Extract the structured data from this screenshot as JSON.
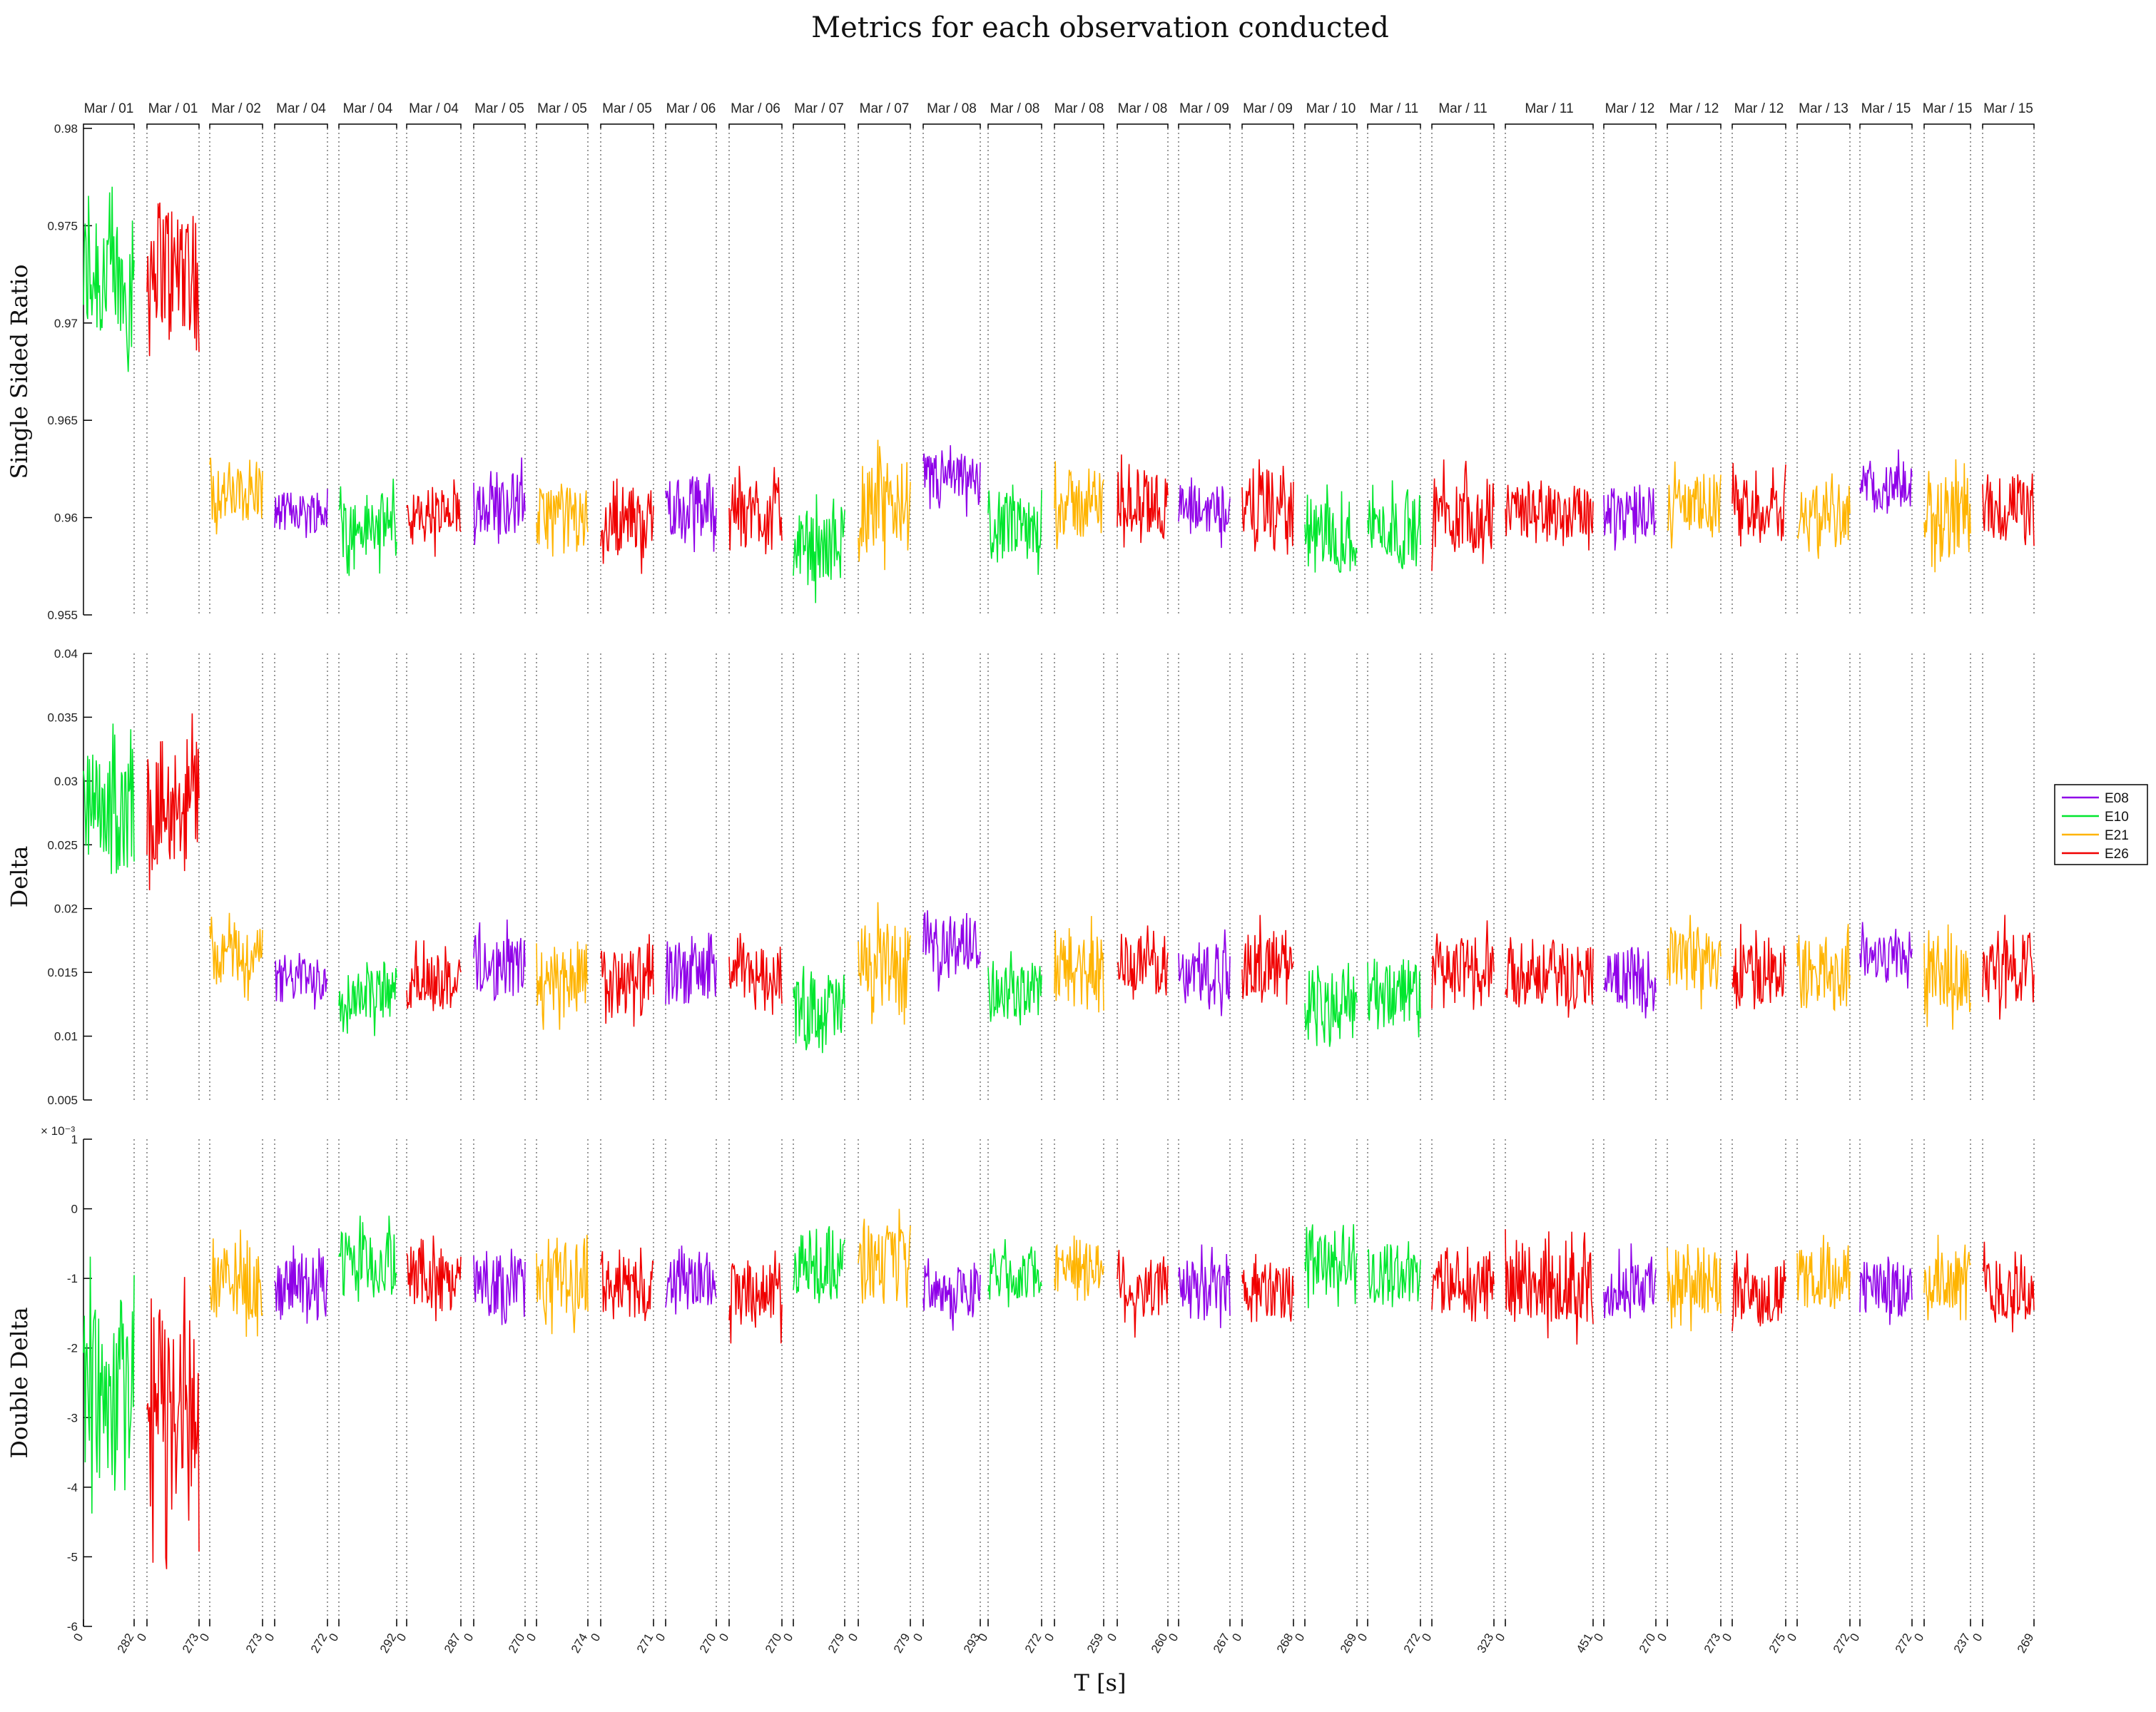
{
  "chart_data": {
    "type": "line",
    "title": "Metrics for each observation conducted",
    "xlabel": "T [s]",
    "series_names": [
      "E08",
      "E10",
      "E21",
      "E26"
    ],
    "colors": {
      "E08": "#8f00e8",
      "E10": "#00e62e",
      "E21": "#ffb400",
      "E26": "#f00000"
    },
    "segments": [
      {
        "date": "Mar / 01",
        "series": "E10",
        "tmax": 282
      },
      {
        "date": "Mar / 01",
        "series": "E26",
        "tmax": 273
      },
      {
        "date": "Mar / 02",
        "series": "E21",
        "tmax": 273
      },
      {
        "date": "Mar / 04",
        "series": "E08",
        "tmax": 272
      },
      {
        "date": "Mar / 04",
        "series": "E10",
        "tmax": 292
      },
      {
        "date": "Mar / 04",
        "series": "E26",
        "tmax": 287
      },
      {
        "date": "Mar / 05",
        "series": "E08",
        "tmax": 270
      },
      {
        "date": "Mar / 05",
        "series": "E21",
        "tmax": 274
      },
      {
        "date": "Mar / 05",
        "series": "E26",
        "tmax": 271
      },
      {
        "date": "Mar / 06",
        "series": "E08",
        "tmax": 270
      },
      {
        "date": "Mar / 06",
        "series": "E26",
        "tmax": 270
      },
      {
        "date": "Mar / 07",
        "series": "E10",
        "tmax": 279
      },
      {
        "date": "Mar / 07",
        "series": "E21",
        "tmax": 279
      },
      {
        "date": "Mar / 08",
        "series": "E08",
        "tmax": 293
      },
      {
        "date": "Mar / 08",
        "series": "E10",
        "tmax": 272
      },
      {
        "date": "Mar / 08",
        "series": "E21",
        "tmax": 259
      },
      {
        "date": "Mar / 08",
        "series": "E26",
        "tmax": 260
      },
      {
        "date": "Mar / 09",
        "series": "E08",
        "tmax": 267
      },
      {
        "date": "Mar / 09",
        "series": "E26",
        "tmax": 268
      },
      {
        "date": "Mar / 10",
        "series": "E10",
        "tmax": 269
      },
      {
        "date": "Mar / 11",
        "series": "E10",
        "tmax": 272
      },
      {
        "date": "Mar / 11",
        "series": "E26",
        "tmax": 323
      },
      {
        "date": "Mar / 11",
        "series": "E26",
        "tmax": 451
      },
      {
        "date": "Mar / 12",
        "series": "E08",
        "tmax": 270
      },
      {
        "date": "Mar / 12",
        "series": "E21",
        "tmax": 273
      },
      {
        "date": "Mar / 12",
        "series": "E26",
        "tmax": 275
      },
      {
        "date": "Mar / 13",
        "series": "E21",
        "tmax": 272
      },
      {
        "date": "Mar / 15",
        "series": "E08",
        "tmax": 272
      },
      {
        "date": "Mar / 15",
        "series": "E21",
        "tmax": 237
      },
      {
        "date": "Mar / 15",
        "series": "E26",
        "tmax": 269
      }
    ],
    "panels": [
      {
        "ylabel": "Single Sided Ratio",
        "ylim": [
          0.955,
          0.98
        ],
        "yticks": [
          "0.955",
          "0.96",
          "0.965",
          "0.97",
          "0.975",
          "0.98"
        ],
        "exponent_label": "",
        "segment_mean": [
          0.9722,
          0.9728,
          0.9612,
          0.9603,
          0.9596,
          0.96,
          0.9608,
          0.96,
          0.9598,
          0.9605,
          0.9603,
          0.9585,
          0.9605,
          0.9618,
          0.9593,
          0.9607,
          0.9608,
          0.9605,
          0.9605,
          0.959,
          0.9595,
          0.9602,
          0.9603,
          0.9603,
          0.9607,
          0.9605,
          0.9602,
          0.9615,
          0.9602,
          0.9605
        ],
        "segment_range": [
          [
            0.9655,
            0.977
          ],
          [
            0.9668,
            0.978
          ],
          [
            0.9588,
            0.9636
          ],
          [
            0.9585,
            0.9618
          ],
          [
            0.957,
            0.962
          ],
          [
            0.9575,
            0.962
          ],
          [
            0.9585,
            0.9635
          ],
          [
            0.958,
            0.9632
          ],
          [
            0.957,
            0.962
          ],
          [
            0.958,
            0.9633
          ],
          [
            0.9575,
            0.9628
          ],
          [
            0.9555,
            0.9612
          ],
          [
            0.9565,
            0.964
          ],
          [
            0.9598,
            0.964
          ],
          [
            0.957,
            0.962
          ],
          [
            0.958,
            0.9635
          ],
          [
            0.958,
            0.9635
          ],
          [
            0.958,
            0.9625
          ],
          [
            0.957,
            0.963
          ],
          [
            0.9558,
            0.9617
          ],
          [
            0.9568,
            0.9625
          ],
          [
            0.957,
            0.9632
          ],
          [
            0.958,
            0.9625
          ],
          [
            0.958,
            0.9625
          ],
          [
            0.958,
            0.9632
          ],
          [
            0.958,
            0.9632
          ],
          [
            0.957,
            0.9628
          ],
          [
            0.9595,
            0.9635
          ],
          [
            0.9565,
            0.9632
          ],
          [
            0.958,
            0.9635
          ]
        ]
      },
      {
        "ylabel": "Delta",
        "ylim": [
          0.005,
          0.04
        ],
        "yticks": [
          "0.005",
          "0.01",
          "0.015",
          "0.02",
          "0.025",
          "0.03",
          "0.035",
          "0.04"
        ],
        "exponent_label": "",
        "segment_mean": [
          0.0275,
          0.0285,
          0.0165,
          0.0145,
          0.0135,
          0.0145,
          0.0155,
          0.0145,
          0.014,
          0.0152,
          0.015,
          0.012,
          0.0155,
          0.0172,
          0.0135,
          0.0155,
          0.0155,
          0.015,
          0.0155,
          0.0125,
          0.0135,
          0.015,
          0.015,
          0.0145,
          0.016,
          0.015,
          0.015,
          0.0163,
          0.0145,
          0.0155
        ],
        "segment_range": [
          [
            0.0195,
            0.0345
          ],
          [
            0.021,
            0.0353
          ],
          [
            0.0125,
            0.0198
          ],
          [
            0.0115,
            0.0172
          ],
          [
            0.0095,
            0.0165
          ],
          [
            0.011,
            0.0178
          ],
          [
            0.012,
            0.0195
          ],
          [
            0.0105,
            0.0195
          ],
          [
            0.0088,
            0.018
          ],
          [
            0.011,
            0.0192
          ],
          [
            0.0115,
            0.0185
          ],
          [
            0.007,
            0.0165
          ],
          [
            0.0095,
            0.0205
          ],
          [
            0.0135,
            0.0205
          ],
          [
            0.0105,
            0.0175
          ],
          [
            0.0105,
            0.02
          ],
          [
            0.0115,
            0.0195
          ],
          [
            0.011,
            0.0185
          ],
          [
            0.0105,
            0.0195
          ],
          [
            0.0083,
            0.017
          ],
          [
            0.0095,
            0.0178
          ],
          [
            0.01,
            0.0195
          ],
          [
            0.011,
            0.0188
          ],
          [
            0.0105,
            0.0185
          ],
          [
            0.0115,
            0.0195
          ],
          [
            0.0115,
            0.0193
          ],
          [
            0.0103,
            0.0188
          ],
          [
            0.013,
            0.0195
          ],
          [
            0.0105,
            0.0193
          ],
          [
            0.0113,
            0.0198
          ]
        ]
      },
      {
        "ylabel": "Double Delta",
        "ylim": [
          -6,
          1
        ],
        "yticks": [
          "-6",
          "-5",
          "-4",
          "-3",
          "-2",
          "-1",
          "0",
          "1"
        ],
        "exponent_label": "× 10⁻³",
        "segment_mean": [
          -2.6,
          -3.0,
          -1.1,
          -1.1,
          -0.8,
          -1.0,
          -1.1,
          -1.0,
          -1.1,
          -1.0,
          -1.2,
          -0.8,
          -0.8,
          -1.2,
          -0.9,
          -0.8,
          -1.15,
          -1.15,
          -1.15,
          -0.75,
          -0.95,
          -1.05,
          -1.1,
          -1.1,
          -1.05,
          -1.2,
          -1.0,
          -1.15,
          -1.0,
          -1.15
        ],
        "segment_range": [
          [
            -4.85,
            -0.4
          ],
          [
            -5.2,
            -0.45
          ],
          [
            -1.9,
            -0.3
          ],
          [
            -1.65,
            -0.35
          ],
          [
            -1.6,
            -0.1
          ],
          [
            -1.75,
            -0.3
          ],
          [
            -2.0,
            -0.45
          ],
          [
            -1.8,
            -0.15
          ],
          [
            -1.85,
            -0.4
          ],
          [
            -1.75,
            -0.35
          ],
          [
            -2.1,
            -0.6
          ],
          [
            -1.6,
            -0.25
          ],
          [
            -1.8,
            0.0
          ],
          [
            -1.8,
            -0.7
          ],
          [
            -1.5,
            -0.4
          ],
          [
            -1.55,
            -0.25
          ],
          [
            -1.85,
            -0.45
          ],
          [
            -1.8,
            -0.5
          ],
          [
            -1.85,
            -0.45
          ],
          [
            -1.45,
            0.05
          ],
          [
            -1.6,
            -0.3
          ],
          [
            -1.75,
            -0.35
          ],
          [
            -1.95,
            -0.25
          ],
          [
            -1.8,
            -0.4
          ],
          [
            -1.8,
            -0.25
          ],
          [
            -1.85,
            -0.5
          ],
          [
            -1.6,
            -0.35
          ],
          [
            -1.85,
            -0.55
          ],
          [
            -1.6,
            -0.2
          ],
          [
            -1.9,
            -0.35
          ]
        ]
      }
    ],
    "legend": {
      "position": "right",
      "entries": [
        "E08",
        "E10",
        "E21",
        "E26"
      ]
    },
    "grid": false
  }
}
